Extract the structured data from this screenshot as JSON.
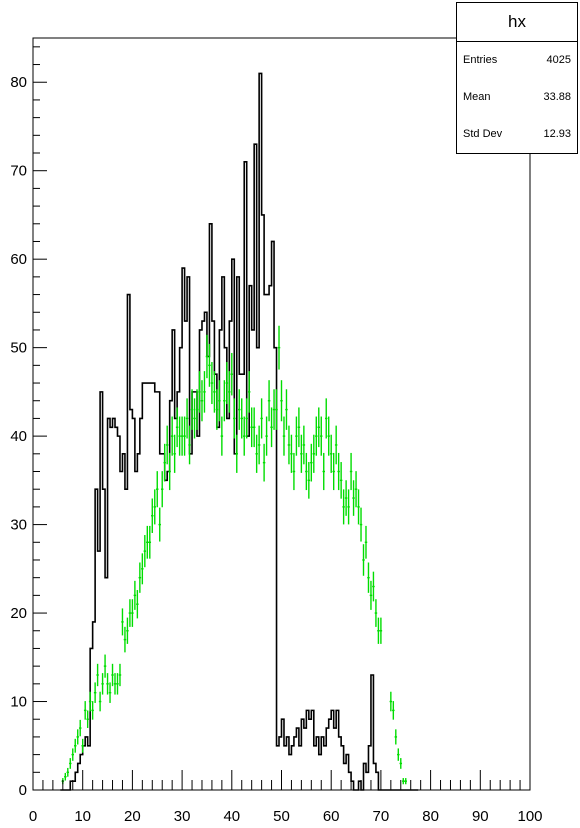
{
  "chart_data": {
    "type": "histogram",
    "title": "",
    "xlabel": "",
    "ylabel": "",
    "xlim": [
      0,
      100
    ],
    "ylim": [
      0,
      85
    ],
    "x_ticks": [
      0,
      10,
      20,
      30,
      40,
      50,
      60,
      70,
      80,
      90,
      100
    ],
    "y_ticks": [
      0,
      10,
      20,
      30,
      40,
      50,
      60,
      70,
      80
    ],
    "grid": false,
    "bin_width": 0.5,
    "series": [
      {
        "style": "step",
        "color": "#000000",
        "x_start": 5.5,
        "values": [
          0,
          0,
          0,
          0,
          1,
          1,
          2,
          3,
          4,
          5,
          6,
          5,
          16,
          19,
          34,
          27,
          45,
          34,
          24,
          42,
          41,
          42,
          41,
          40,
          36,
          38,
          34,
          56,
          43,
          42,
          36,
          38,
          42,
          46,
          46,
          46,
          46,
          46,
          45,
          45,
          38,
          38,
          35,
          36,
          44,
          52,
          42,
          45,
          50,
          59,
          53,
          58,
          38,
          45,
          45,
          40,
          52,
          53,
          54,
          49,
          64,
          53,
          47,
          41,
          52,
          58,
          50,
          42,
          53,
          60,
          38,
          58,
          47,
          47,
          71,
          40,
          57,
          52,
          73,
          50,
          81,
          65,
          56,
          56,
          57,
          62,
          50,
          5,
          6,
          8,
          5,
          6,
          4,
          5,
          6,
          7,
          5,
          8,
          7,
          9,
          8,
          9,
          5,
          6,
          4,
          6,
          5,
          7,
          8,
          9,
          7,
          9,
          6,
          5,
          3,
          4,
          2,
          1,
          0,
          0,
          1,
          0,
          3,
          2,
          5,
          13,
          3,
          2,
          0,
          0,
          0,
          0,
          0,
          0,
          0,
          0,
          0,
          0,
          0,
          0,
          0,
          0,
          0,
          0
        ]
      },
      {
        "style": "error-bars",
        "color": "#00dd00",
        "points": [
          [
            6,
            1
          ],
          [
            6.5,
            1.5
          ],
          [
            7,
            2
          ],
          [
            7.5,
            3
          ],
          [
            8,
            4
          ],
          [
            8.5,
            5
          ],
          [
            9,
            6
          ],
          [
            9.5,
            7
          ],
          [
            10,
            5
          ],
          [
            10.5,
            9
          ],
          [
            11,
            8
          ],
          [
            11.5,
            10
          ],
          [
            12,
            9
          ],
          [
            12.5,
            11
          ],
          [
            13,
            13
          ],
          [
            13.5,
            10
          ],
          [
            14,
            12
          ],
          [
            14.5,
            14
          ],
          [
            15,
            12
          ],
          [
            15.5,
            11
          ],
          [
            16,
            13
          ],
          [
            16.5,
            12
          ],
          [
            17,
            12
          ],
          [
            17.5,
            13
          ],
          [
            18,
            19
          ],
          [
            18.5,
            17
          ],
          [
            19,
            18
          ],
          [
            19.5,
            20
          ],
          [
            20,
            20
          ],
          [
            20.5,
            22
          ],
          [
            21,
            21
          ],
          [
            21.5,
            24
          ],
          [
            22,
            25
          ],
          [
            22.5,
            27
          ],
          [
            23,
            28
          ],
          [
            23.5,
            28
          ],
          [
            24,
            31
          ],
          [
            24.5,
            32
          ],
          [
            25,
            34
          ],
          [
            25.5,
            30
          ],
          [
            26,
            34
          ],
          [
            26.5,
            37
          ],
          [
            27,
            39
          ],
          [
            27.5,
            36
          ],
          [
            28,
            40
          ],
          [
            28.5,
            38
          ],
          [
            29,
            41
          ],
          [
            29.5,
            40
          ],
          [
            30,
            40
          ],
          [
            30.5,
            40
          ],
          [
            31,
            42
          ],
          [
            31.5,
            39
          ],
          [
            32,
            43
          ],
          [
            32.5,
            42
          ],
          [
            33,
            43
          ],
          [
            33.5,
            45
          ],
          [
            34,
            44
          ],
          [
            34.5,
            45
          ],
          [
            35,
            49
          ],
          [
            35.5,
            48
          ],
          [
            36,
            46
          ],
          [
            36.5,
            45
          ],
          [
            37,
            43
          ],
          [
            37.5,
            44
          ],
          [
            38,
            40
          ],
          [
            38.5,
            44
          ],
          [
            39,
            46
          ],
          [
            39.5,
            45
          ],
          [
            40,
            47
          ],
          [
            40.5,
            42
          ],
          [
            41,
            38
          ],
          [
            41.5,
            43
          ],
          [
            42,
            42
          ],
          [
            42.5,
            40
          ],
          [
            43,
            42
          ],
          [
            43.5,
            45
          ],
          [
            44,
            41
          ],
          [
            44.5,
            41
          ],
          [
            45,
            38
          ],
          [
            45.5,
            39
          ],
          [
            46,
            42
          ],
          [
            46.5,
            37
          ],
          [
            47,
            40
          ],
          [
            47.5,
            44
          ],
          [
            48,
            41
          ],
          [
            48.5,
            43
          ],
          [
            49,
            43
          ],
          [
            49.5,
            50
          ],
          [
            50,
            44
          ],
          [
            50.5,
            40
          ],
          [
            51,
            43
          ],
          [
            51.5,
            39
          ],
          [
            52,
            38
          ],
          [
            52.5,
            36
          ],
          [
            53,
            40
          ],
          [
            53.5,
            41
          ],
          [
            54,
            38
          ],
          [
            54.5,
            39
          ],
          [
            55,
            36
          ],
          [
            55.5,
            35
          ],
          [
            56,
            37
          ],
          [
            56.5,
            38
          ],
          [
            57,
            40
          ],
          [
            57.5,
            41
          ],
          [
            58,
            40
          ],
          [
            58.5,
            36
          ],
          [
            59,
            42
          ],
          [
            59.5,
            40
          ],
          [
            60,
            38
          ],
          [
            60.5,
            36
          ],
          [
            61,
            39
          ],
          [
            61.5,
            36
          ],
          [
            62,
            35
          ],
          [
            62.5,
            32
          ],
          [
            63,
            33
          ],
          [
            63.5,
            32
          ],
          [
            64,
            36
          ],
          [
            64.5,
            33
          ],
          [
            65,
            34
          ],
          [
            65.5,
            32
          ],
          [
            66,
            30
          ],
          [
            66.5,
            26
          ],
          [
            67,
            28
          ],
          [
            67.5,
            24
          ],
          [
            68,
            22
          ],
          [
            68.5,
            23
          ],
          [
            69,
            20
          ],
          [
            69.5,
            18
          ],
          [
            70,
            18
          ],
          [
            72,
            10
          ],
          [
            72.5,
            9
          ],
          [
            73,
            6
          ],
          [
            73.5,
            4
          ],
          [
            74,
            3
          ],
          [
            74.5,
            1
          ],
          [
            75,
            1
          ]
        ]
      }
    ],
    "stats": {
      "title": "hx",
      "entries_label": "Entries",
      "entries": "4025",
      "mean_label": "Mean",
      "mean": "33.88",
      "stddev_label": "Std Dev",
      "stddev": "12.93"
    }
  }
}
